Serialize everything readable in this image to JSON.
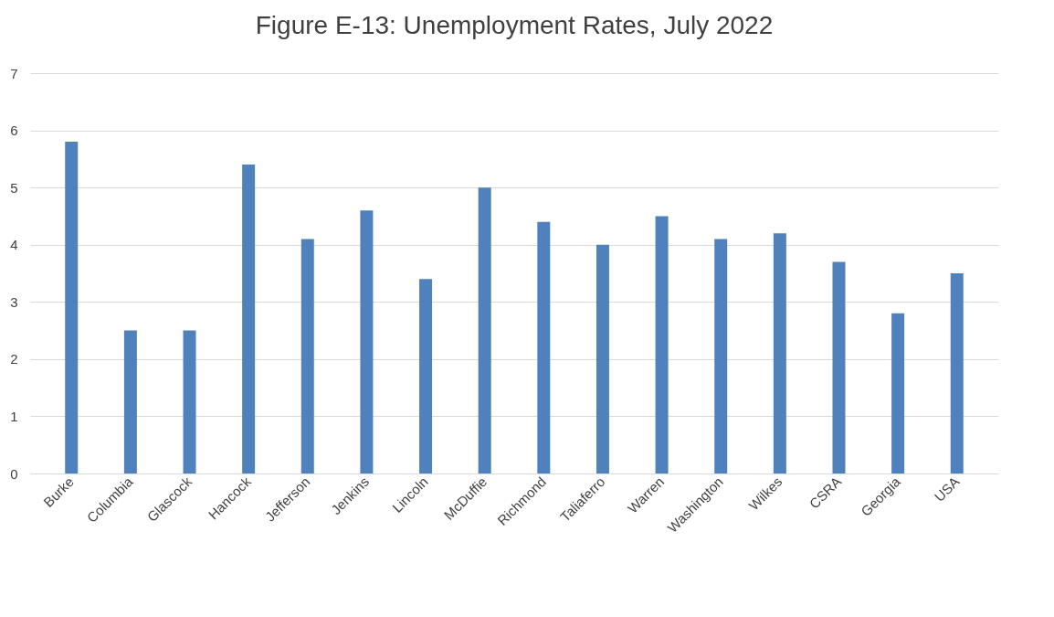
{
  "chart_data": {
    "type": "bar",
    "title": "Figure E-13: Unemployment Rates, July 2022",
    "categories": [
      "Burke",
      "Columbia",
      "Glascock",
      "Hancock",
      "Jefferson",
      "Jenkins",
      "Lincoln",
      "McDuffie",
      "Richmond",
      "Taliaferro",
      "Warren",
      "Washington",
      "Wilkes",
      "CSRA",
      "Georgia",
      "USA"
    ],
    "values": [
      5.8,
      2.5,
      2.5,
      5.4,
      4.1,
      4.6,
      3.4,
      5.0,
      4.4,
      4.0,
      4.5,
      4.1,
      4.2,
      3.7,
      2.8,
      3.5
    ],
    "color": "#4f81bd",
    "ylim": [
      0,
      7
    ],
    "yticks": [
      0,
      1,
      2,
      3,
      4,
      5,
      6,
      7
    ],
    "grid": "y"
  }
}
